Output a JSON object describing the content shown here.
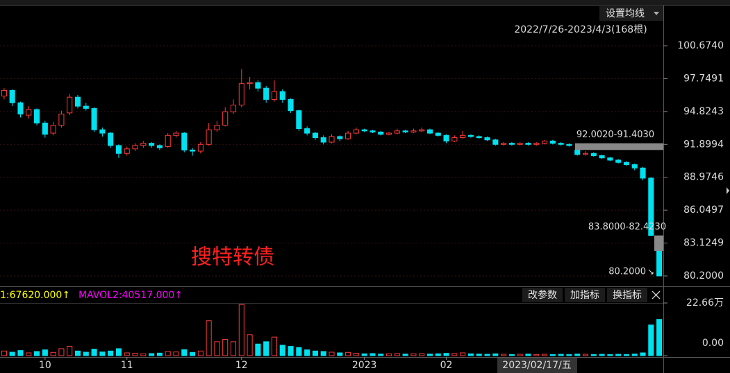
{
  "chart_data": {
    "type": "candlestick",
    "ma_button": "设置均线",
    "range_label": "2022/7/26-2023/4/3(168根)",
    "watermark": "搜特转债",
    "ylim": [
      79.46,
      104.25
    ],
    "yticks": [
      {
        "value": 100.674,
        "label": "100.6740"
      },
      {
        "value": 97.7491,
        "label": "97.7491"
      },
      {
        "value": 94.8243,
        "label": "94.8243"
      },
      {
        "value": 91.8994,
        "label": "91.8994"
      },
      {
        "value": 88.9746,
        "label": "88.9746"
      },
      {
        "value": 86.0497,
        "label": "86.0497"
      },
      {
        "value": 83.1249,
        "label": "83.1249"
      },
      {
        "value": 80.2,
        "label": "80.2000"
      }
    ],
    "grid": true,
    "up_color": "#ff3b3b",
    "down_color": "#00e1f0",
    "gaps": [
      {
        "text": "92.0020-91.4030",
        "high": 92.002,
        "low": 91.403
      },
      {
        "text": "83.8000-82.4230",
        "high": 83.8,
        "low": 82.423
      }
    ],
    "low_label": {
      "text": "80.2000",
      "value": 80.2
    },
    "categories": [
      null,
      null,
      null,
      null,
      null,
      "10",
      null,
      null,
      null,
      null,
      null,
      null,
      null,
      null,
      null,
      "11",
      null,
      null,
      null,
      null,
      null,
      null,
      null,
      null,
      null,
      null,
      null,
      null,
      null,
      "12",
      null,
      null,
      null,
      null,
      null,
      null,
      null,
      null,
      null,
      null,
      null,
      null,
      null,
      null,
      "2023",
      null,
      null,
      null,
      null,
      null,
      null,
      null,
      null,
      null,
      "02",
      null,
      null,
      null,
      null,
      null,
      null,
      null,
      null,
      null,
      null,
      null,
      null,
      null,
      null,
      null,
      null,
      null,
      null,
      null,
      null,
      null,
      null,
      null,
      null,
      null,
      null
    ],
    "crosshair_date": "2023/02/17/五",
    "ohlc": [
      [
        96.2,
        96.9,
        95.9,
        96.7
      ],
      [
        96.7,
        96.8,
        95.3,
        95.6
      ],
      [
        95.6,
        95.7,
        94.3,
        94.6
      ],
      [
        94.5,
        95.3,
        94.2,
        95.0
      ],
      [
        95.0,
        95.1,
        93.6,
        93.8
      ],
      [
        93.8,
        94.0,
        92.5,
        92.8
      ],
      [
        92.9,
        93.9,
        92.7,
        93.6
      ],
      [
        93.6,
        94.9,
        93.4,
        94.6
      ],
      [
        94.7,
        96.4,
        94.5,
        96.1
      ],
      [
        96.1,
        96.3,
        95.1,
        95.3
      ],
      [
        95.3,
        95.6,
        94.9,
        95.1
      ],
      [
        95.1,
        95.2,
        93.0,
        93.2
      ],
      [
        93.2,
        93.4,
        92.6,
        92.9
      ],
      [
        92.9,
        93.0,
        91.6,
        91.8
      ],
      [
        91.8,
        91.9,
        90.7,
        91.1
      ],
      [
        91.1,
        91.7,
        90.9,
        91.5
      ],
      [
        91.5,
        92.0,
        91.3,
        91.8
      ],
      [
        91.8,
        92.2,
        91.6,
        92.0
      ],
      [
        92.0,
        92.1,
        91.6,
        91.8
      ],
      [
        91.8,
        91.9,
        91.4,
        91.6
      ],
      [
        91.7,
        92.9,
        91.6,
        92.7
      ],
      [
        92.7,
        93.1,
        92.5,
        92.9
      ],
      [
        92.9,
        93.0,
        91.2,
        91.4
      ],
      [
        91.4,
        91.6,
        90.9,
        91.3
      ],
      [
        91.3,
        92.1,
        91.1,
        91.9
      ],
      [
        91.9,
        93.8,
        91.8,
        93.2
      ],
      [
        93.2,
        94.0,
        93.0,
        93.6
      ],
      [
        93.6,
        95.2,
        93.5,
        94.8
      ],
      [
        94.8,
        95.9,
        94.6,
        95.4
      ],
      [
        95.4,
        98.6,
        95.2,
        97.3
      ],
      [
        97.3,
        97.9,
        96.8,
        97.4
      ],
      [
        97.4,
        97.6,
        96.6,
        96.9
      ],
      [
        96.9,
        97.1,
        95.6,
        95.9
      ],
      [
        95.9,
        97.6,
        95.7,
        96.6
      ],
      [
        96.6,
        96.8,
        95.6,
        95.9
      ],
      [
        95.9,
        96.0,
        94.7,
        94.9
      ],
      [
        94.9,
        95.0,
        93.1,
        93.3
      ],
      [
        93.3,
        93.5,
        92.7,
        92.9
      ],
      [
        92.9,
        93.0,
        92.3,
        92.5
      ],
      [
        92.5,
        92.7,
        91.9,
        92.1
      ],
      [
        92.1,
        92.8,
        92.0,
        92.6
      ],
      [
        92.6,
        92.7,
        92.2,
        92.4
      ],
      [
        92.4,
        93.1,
        92.3,
        92.9
      ],
      [
        92.9,
        93.4,
        92.8,
        93.2
      ],
      [
        93.2,
        93.3,
        93.0,
        93.1
      ],
      [
        93.1,
        93.2,
        92.9,
        93.0
      ],
      [
        93.0,
        93.1,
        92.7,
        92.8
      ],
      [
        92.8,
        93.0,
        92.7,
        92.9
      ],
      [
        92.9,
        93.3,
        92.8,
        93.1
      ],
      [
        93.1,
        93.2,
        92.9,
        93.0
      ],
      [
        93.0,
        93.3,
        92.9,
        93.1
      ],
      [
        93.1,
        93.4,
        93.0,
        93.2
      ],
      [
        93.2,
        93.3,
        92.8,
        92.9
      ],
      [
        92.9,
        93.0,
        92.6,
        92.7
      ],
      [
        92.7,
        92.8,
        92.0,
        92.2
      ],
      [
        92.2,
        92.7,
        92.1,
        92.5
      ],
      [
        92.5,
        93.1,
        92.4,
        92.7
      ],
      [
        92.7,
        92.8,
        92.5,
        92.6
      ],
      [
        92.6,
        92.7,
        92.4,
        92.5
      ],
      [
        92.5,
        92.6,
        92.2,
        92.3
      ],
      [
        92.3,
        92.4,
        91.8,
        91.9
      ],
      [
        91.9,
        92.1,
        91.8,
        92.0
      ],
      [
        92.0,
        92.1,
        91.8,
        91.9
      ],
      [
        91.9,
        92.1,
        91.8,
        92.0
      ],
      [
        92.0,
        92.1,
        91.8,
        91.9
      ],
      [
        91.9,
        92.1,
        91.8,
        92.0
      ],
      [
        92.0,
        92.3,
        91.9,
        92.2
      ],
      [
        92.2,
        92.3,
        91.9,
        92.0
      ],
      [
        92.0,
        92.1,
        91.8,
        91.9
      ],
      [
        91.9,
        92.0,
        91.7,
        91.8
      ],
      [
        91.4,
        91.4,
        90.9,
        91.0
      ],
      [
        91.0,
        91.3,
        90.9,
        91.1
      ],
      [
        91.1,
        91.2,
        90.8,
        90.9
      ],
      [
        90.9,
        91.0,
        90.6,
        90.7
      ],
      [
        90.7,
        90.8,
        90.4,
        90.5
      ],
      [
        90.5,
        90.6,
        90.2,
        90.3
      ],
      [
        90.3,
        90.4,
        90.0,
        90.1
      ],
      [
        90.1,
        90.2,
        89.6,
        89.8
      ],
      [
        89.8,
        89.9,
        88.7,
        88.9
      ],
      [
        88.9,
        89.0,
        83.8,
        83.8
      ],
      [
        82.42,
        82.42,
        80.2,
        80.2
      ]
    ],
    "volume": {
      "legend": [
        {
          "text": "1:67620.000↑",
          "color": "#ffff00"
        },
        {
          "text": "MAVOL2:40517.000↑",
          "color": "#ff00ff"
        }
      ],
      "buttons": [
        "改参数",
        "加指标",
        "换指标"
      ],
      "ylim": [
        0,
        226600
      ],
      "yticks": [
        {
          "value": 226600,
          "label": "22.66万"
        },
        {
          "value": 0,
          "label": "0.00"
        }
      ],
      "values": [
        20000,
        15000,
        22000,
        12000,
        18000,
        25000,
        14000,
        30000,
        40000,
        20000,
        15000,
        28000,
        16000,
        20000,
        30000,
        12000,
        10000,
        8000,
        9000,
        11000,
        18000,
        16000,
        26000,
        14000,
        20000,
        150000,
        60000,
        70000,
        60000,
        220000,
        90000,
        50000,
        60000,
        80000,
        45000,
        40000,
        35000,
        25000,
        20000,
        18000,
        15000,
        12000,
        14000,
        10000,
        8000,
        9000,
        7000,
        8000,
        9000,
        7000,
        8000,
        9000,
        7000,
        8000,
        10000,
        9000,
        12000,
        8000,
        7000,
        6000,
        8000,
        6000,
        5000,
        6000,
        7000,
        5000,
        6000,
        5000,
        6000,
        5000,
        7000,
        6000,
        5000,
        6000,
        5000,
        6000,
        5000,
        7000,
        12000,
        132000,
        156000
      ]
    }
  }
}
